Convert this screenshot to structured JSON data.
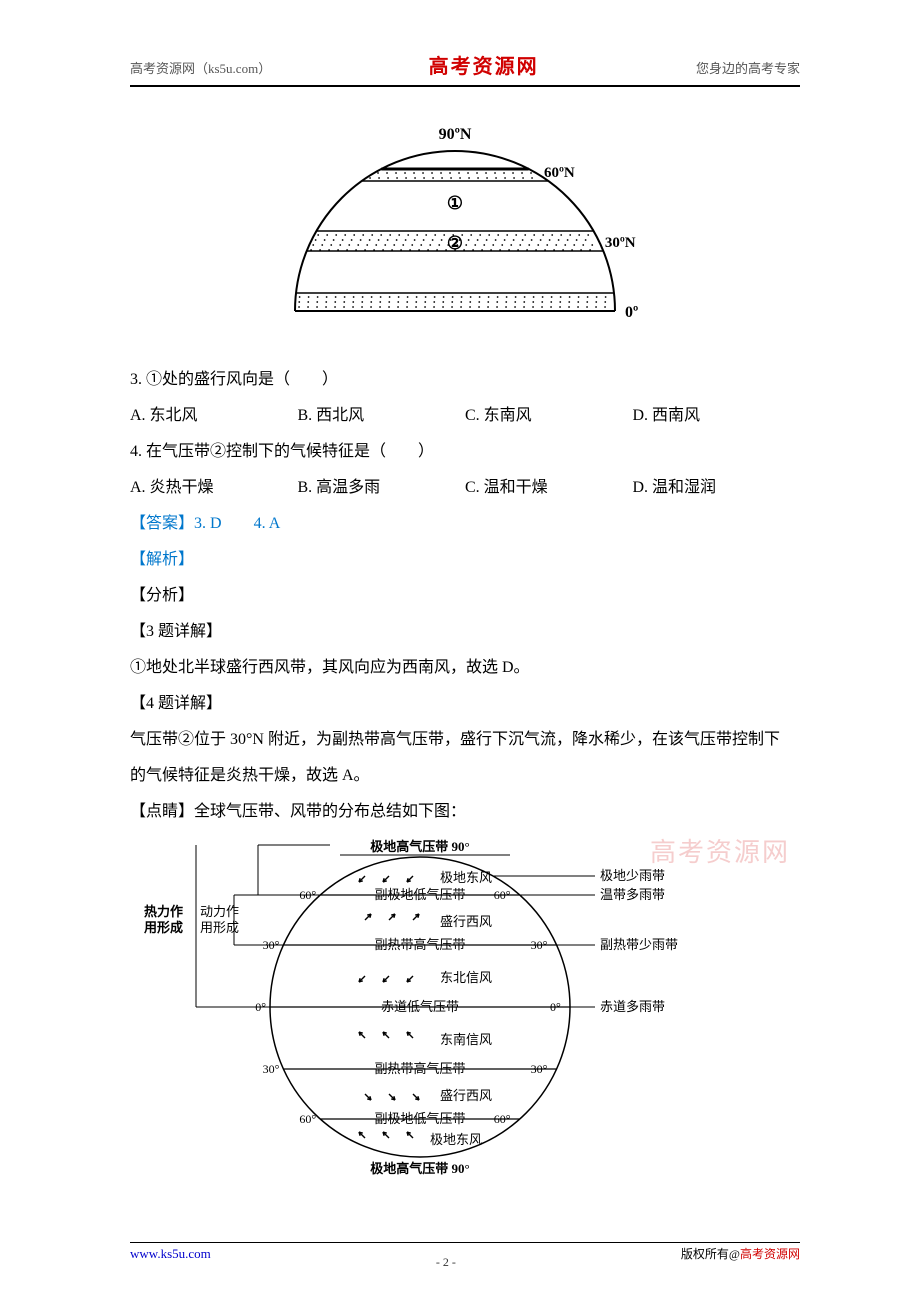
{
  "header": {
    "left": "高考资源网（ks5u.com）",
    "center": "高考资源网",
    "right": "您身边的高考专家"
  },
  "diagram1": {
    "type": "diagram",
    "stroke": "#000000",
    "fill_dots": "#000000",
    "background": "#ffffff",
    "labels": {
      "top": "90ºN",
      "lat60": "60ºN",
      "lat30": "30ºN",
      "equator": "0º",
      "circle1": "①",
      "circle2": "②"
    },
    "label_fontsize": 14,
    "stroke_width": 2
  },
  "q3": {
    "stem": "3. ①处的盛行风向是（　　）",
    "options": {
      "A": "A. 东北风",
      "B": "B. 西北风",
      "C": "C. 东南风",
      "D": "D. 西南风"
    }
  },
  "q4": {
    "stem": "4. 在气压带②控制下的气候特征是（　　）",
    "options": {
      "A": "A. 炎热干燥",
      "B": "B. 高温多雨",
      "C": "C. 温和干燥",
      "D": "D. 温和湿润"
    }
  },
  "answer_block": {
    "label": "【答案】",
    "text": "3. D　　4. A"
  },
  "explain": {
    "jiexi": "【解析】",
    "fenxi": "【分析】",
    "q3label": "【3 题详解】",
    "q3text": "①地处北半球盛行西风带，其风向应为西南风，故选 D。",
    "q4label": "【4 题详解】",
    "q4text1": "气压带②位于 30°N 附近，为副热带高气压带，盛行下沉气流，降水稀少，在该气压带控制下",
    "q4text2": "的气候特征是炎热干燥，故选 A。",
    "dianjing": "【点睛】全球气压带、风带的分布总结如下图："
  },
  "diagram2": {
    "type": "diagram",
    "stroke": "#000000",
    "background": "#ffffff",
    "label_fontsize": 13,
    "title_top": "极地高气压带  90°",
    "title_bottom": "极地高气压带  90°",
    "bands": [
      {
        "lat": "60°",
        "name": "副极地低气压带",
        "wind_above": "极地东风",
        "wind_dir": "sw"
      },
      {
        "lat": "30°",
        "name": "副热带高气压带",
        "wind_above": "盛行西风",
        "wind_dir": "ne"
      },
      {
        "lat": "0°",
        "name": "赤道低气压带",
        "wind_above": "东北信风",
        "wind_dir": "sw"
      }
    ],
    "bands_south": [
      {
        "wind": "东南信风",
        "wind_dir": "nw"
      },
      {
        "lat": "30°",
        "name": "副热带高气压带",
        "wind": "盛行西风",
        "wind_dir": "se"
      },
      {
        "lat": "60°",
        "name": "副极地低气压带",
        "wind": "极地东风",
        "wind_dir": "nw"
      }
    ],
    "right_labels": {
      "polar": "极地少雨带",
      "temperate": "温带多雨带",
      "subtrop": "副热带少雨带",
      "equator": "赤道多雨带"
    },
    "left_labels": {
      "thermal": "热力作\n用形成",
      "dynamic": "动力作\n用形成"
    }
  },
  "watermark": "高考资源网",
  "footer": {
    "url": "www.ks5u.com",
    "page": "- 2 -",
    "copyright_prefix": "版权所有@",
    "copyright_brand": "高考资源网"
  }
}
